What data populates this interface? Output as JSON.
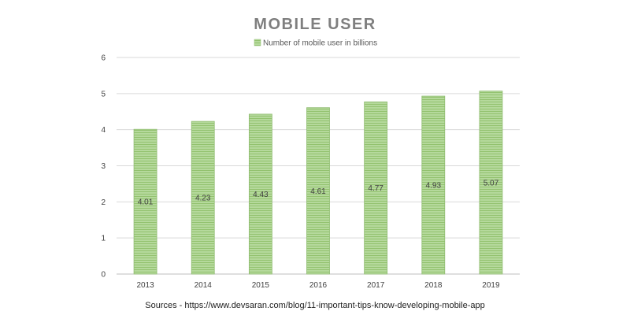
{
  "chart_data": {
    "type": "bar",
    "title": "MOBILE USER",
    "categories": [
      "2013",
      "2014",
      "2015",
      "2016",
      "2017",
      "2018",
      "2019"
    ],
    "series": [
      {
        "name": "Number of mobile user in billions",
        "values": [
          4.01,
          4.23,
          4.43,
          4.61,
          4.77,
          4.93,
          5.07
        ],
        "color": "#a9d18e",
        "border_color": "#8fbc70"
      }
    ],
    "data_labels": [
      "4.01",
      "4.23",
      "4.43",
      "4.61",
      "4.77",
      "4.93",
      "5.07"
    ],
    "y_ticks": [
      "0",
      "1",
      "2",
      "3",
      "4",
      "5",
      "6"
    ],
    "ylim": [
      0,
      6
    ],
    "xlabel": "",
    "ylabel": "",
    "grid": true,
    "legend_position": "top-center"
  },
  "source": "Sources - https://www.devsaran.com/blog/11-important-tips-know-developing-mobile-app"
}
